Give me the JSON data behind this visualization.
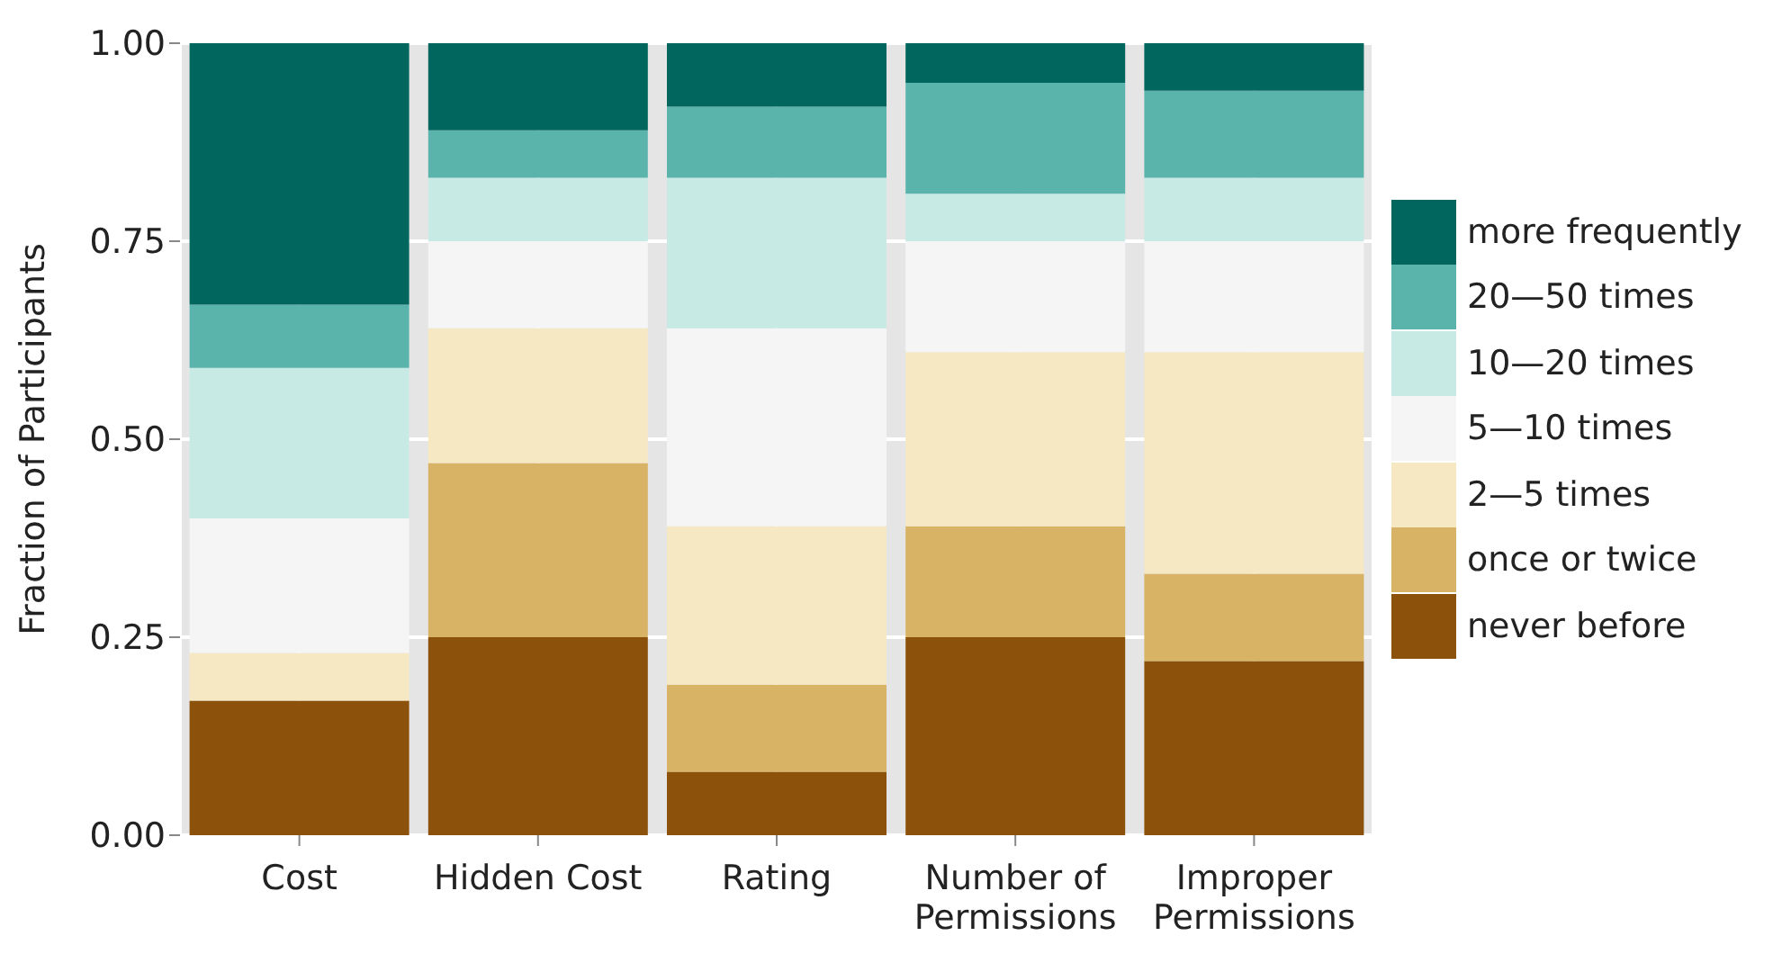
{
  "chart_data": {
    "type": "bar",
    "stacked": true,
    "ylabel": "Fraction of Participants",
    "categories": [
      "Cost",
      "Hidden Cost",
      "Rating",
      "Number of\nPermissions",
      "Improper\nPermissions"
    ],
    "series": [
      {
        "name": "never before",
        "color": "#8c510a",
        "values": [
          0.17,
          0.25,
          0.08,
          0.25,
          0.22
        ]
      },
      {
        "name": "once or twice",
        "color": "#d8b365",
        "values": [
          0,
          0.22,
          0.11,
          0.14,
          0.11
        ]
      },
      {
        "name": "2—5 times",
        "color": "#f6e8c3",
        "values": [
          0.06,
          0.17,
          0.2,
          0.22,
          0.28
        ]
      },
      {
        "name": "5—10 times",
        "color": "#f5f5f5",
        "values": [
          0.17,
          0.11,
          0.25,
          0.14,
          0.14
        ]
      },
      {
        "name": "10—20 times",
        "color": "#c7eae5",
        "values": [
          0.19,
          0.08,
          0.19,
          0.06,
          0.08
        ]
      },
      {
        "name": "20—50 times",
        "color": "#5ab4ac",
        "values": [
          0.08,
          0.06,
          0.09,
          0.14,
          0.11
        ]
      },
      {
        "name": "more frequently",
        "color": "#01665e",
        "values": [
          0.33,
          0.11,
          0.08,
          0.05,
          0.06
        ]
      }
    ],
    "ylim": [
      0,
      1
    ],
    "yticks": [
      {
        "value": 0,
        "label": "0.00"
      },
      {
        "value": 0.25,
        "label": "0.25"
      },
      {
        "value": 0.5,
        "label": "0.50"
      },
      {
        "value": 0.75,
        "label": "0.75"
      },
      {
        "value": 1,
        "label": "1.00"
      }
    ],
    "grid": true,
    "legend": "right"
  }
}
